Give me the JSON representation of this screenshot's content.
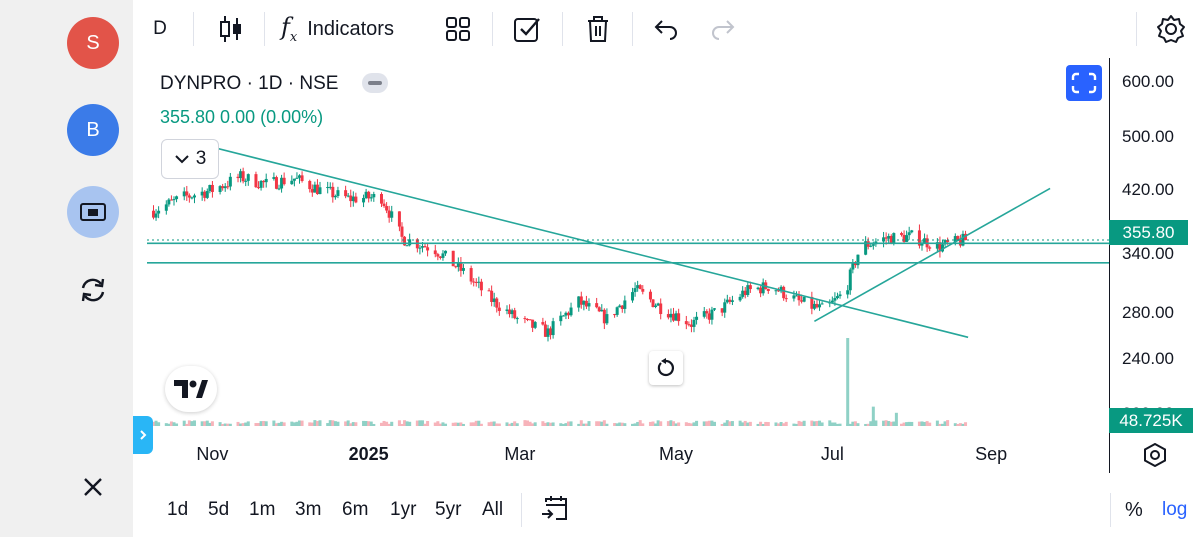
{
  "left_rail": {
    "sell_label": "S",
    "buy_label": "B",
    "lock_icon": "lock-icon",
    "refresh_icon": "refresh-icon",
    "close_icon": "close-icon",
    "colors": {
      "sell": "#e25449",
      "buy": "#3b7be8",
      "lock_bg": "#a8c4f0"
    }
  },
  "toolbar": {
    "interval_label": "D",
    "candles_icon": "candlestick-icon",
    "indicators_icon": "fx-icon",
    "indicators_label": "Indicators",
    "layouts_icon": "grid-icon",
    "checkbox_icon": "checkbox-icon",
    "trash_icon": "trash-icon",
    "undo_icon": "undo-icon",
    "redo_icon": "redo-icon",
    "settings_icon": "gear-icon"
  },
  "legend": {
    "title": "DYNPRO · 1D · NSE",
    "value": "355.80  0.00 (0.00%)",
    "collapse_count": "3"
  },
  "chart_data": {
    "type": "candlestick",
    "symbol": "DYNPRO",
    "interval": "1D",
    "exchange": "NSE",
    "last_price": "355.80",
    "last_volume": "48.725K",
    "ylim": [
      195,
      620
    ],
    "price_ticks": [
      "600.00",
      "500.00",
      "420.00",
      "340.00",
      "280.00",
      "240.00",
      "200.00"
    ],
    "price_tick_values": [
      600,
      500,
      420,
      340,
      280,
      240,
      200
    ],
    "time_labels": [
      "Nov",
      "2025",
      "Mar",
      "May",
      "Jul",
      "Sep"
    ],
    "close_series": [
      {
        "date": "2024-10-09",
        "close": 392
      },
      {
        "date": "2024-10-21",
        "close": 410
      },
      {
        "date": "2024-11-01",
        "close": 420
      },
      {
        "date": "2024-11-12",
        "close": 438
      },
      {
        "date": "2024-11-22",
        "close": 428
      },
      {
        "date": "2024-12-03",
        "close": 436
      },
      {
        "date": "2024-12-13",
        "close": 420
      },
      {
        "date": "2024-12-24",
        "close": 408
      },
      {
        "date": "2025-01-06",
        "close": 410
      },
      {
        "date": "2025-01-14",
        "close": 358
      },
      {
        "date": "2025-01-27",
        "close": 345
      },
      {
        "date": "2025-02-07",
        "close": 320
      },
      {
        "date": "2025-02-18",
        "close": 292
      },
      {
        "date": "2025-03-01",
        "close": 272
      },
      {
        "date": "2025-03-12",
        "close": 262
      },
      {
        "date": "2025-03-24",
        "close": 290
      },
      {
        "date": "2025-04-04",
        "close": 274
      },
      {
        "date": "2025-04-15",
        "close": 302
      },
      {
        "date": "2025-04-25",
        "close": 285
      },
      {
        "date": "2025-05-07",
        "close": 270
      },
      {
        "date": "2025-05-18",
        "close": 282
      },
      {
        "date": "2025-05-28",
        "close": 300
      },
      {
        "date": "2025-06-07",
        "close": 306
      },
      {
        "date": "2025-06-18",
        "close": 290
      },
      {
        "date": "2025-06-28",
        "close": 282
      },
      {
        "date": "2025-07-06",
        "close": 300
      },
      {
        "date": "2025-07-12",
        "close": 348
      },
      {
        "date": "2025-07-22",
        "close": 358
      },
      {
        "date": "2025-08-01",
        "close": 360
      },
      {
        "date": "2025-08-12",
        "close": 348
      },
      {
        "date": "2025-08-22",
        "close": 356
      }
    ],
    "drawings": [
      {
        "name": "descending-trendline",
        "from": {
          "date": "2024-10-23",
          "price": 493
        },
        "to": {
          "date": "2025-08-23",
          "price": 258
        }
      },
      {
        "name": "ascending-trendline",
        "from": {
          "date": "2025-06-24",
          "price": 272
        },
        "to": {
          "date": "2025-09-24",
          "price": 422
        }
      },
      {
        "name": "horizontal-line-upper",
        "price": 352
      },
      {
        "name": "horizontal-line-lower",
        "price": 330
      },
      {
        "name": "last-price-line",
        "price": 355.8
      }
    ],
    "volume_spikes": [
      {
        "date": "2025-07-07",
        "relative": 1.0
      },
      {
        "date": "2025-07-17",
        "relative": 0.22
      },
      {
        "date": "2025-07-26",
        "relative": 0.15
      }
    ],
    "colors": {
      "up": "#089981",
      "down": "#f23645",
      "line": "#26a69a",
      "volume_up": "#8fd1c6",
      "volume_down": "#f7b3ba"
    }
  },
  "axis": {
    "last_price_badge": "355.80",
    "volume_badge": "48.725K"
  },
  "bottom": {
    "ranges": [
      "1d",
      "5d",
      "1m",
      "3m",
      "6m",
      "1yr",
      "5yr",
      "All"
    ],
    "goto_icon": "calendar-goto-icon",
    "percent_label": "%",
    "log_label": "log"
  },
  "overlays": {
    "fullscreen_icon": "fullscreen-icon",
    "reset_icon": "reset-icon",
    "logo_icon": "tradingview-logo",
    "axis_settings_icon": "settings-hex-icon",
    "expand_icon": "chevron-right-icon"
  }
}
